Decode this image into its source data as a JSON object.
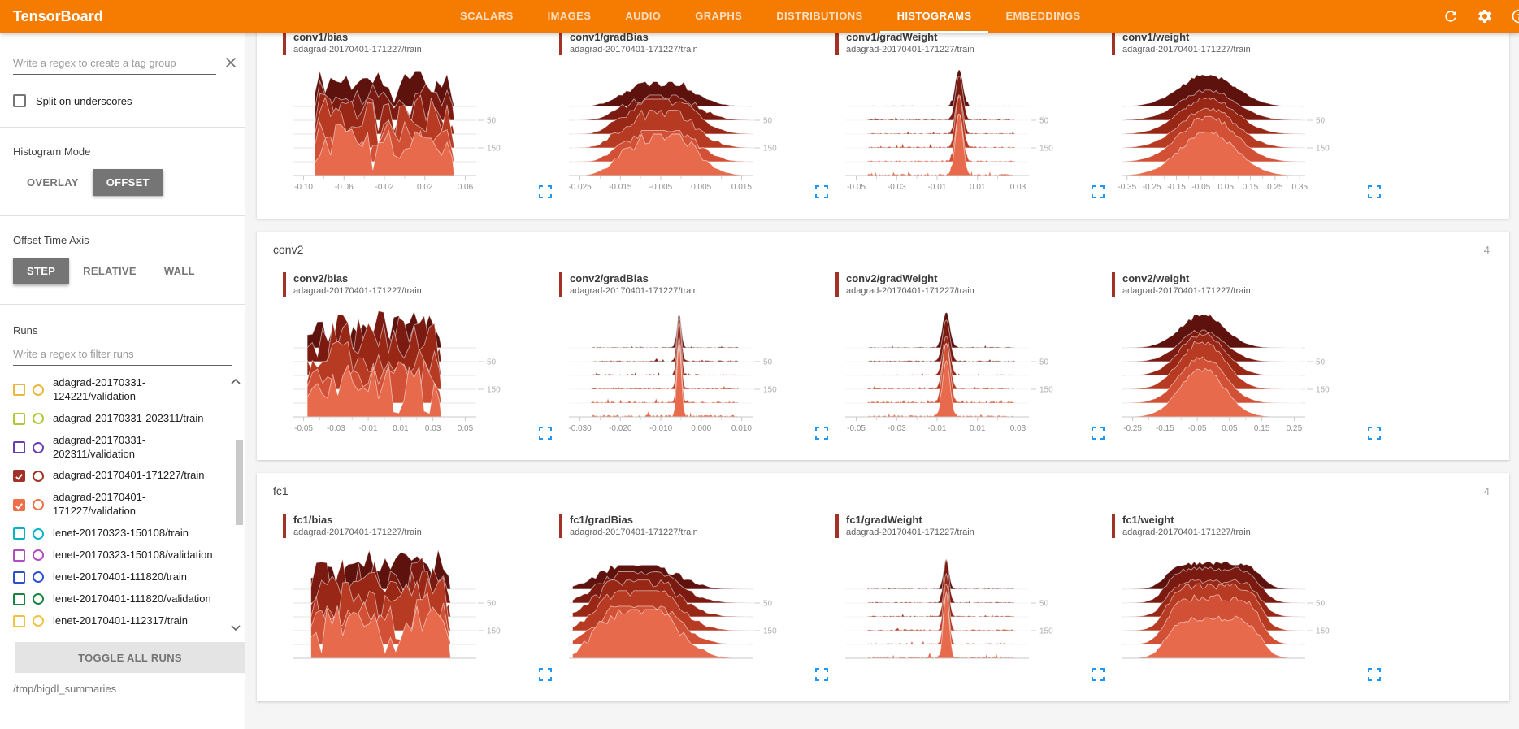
{
  "header": {
    "title": "TensorBoard",
    "tabs": [
      {
        "label": "SCALARS",
        "active": false
      },
      {
        "label": "IMAGES",
        "active": false
      },
      {
        "label": "AUDIO",
        "active": false
      },
      {
        "label": "GRAPHS",
        "active": false
      },
      {
        "label": "DISTRIBUTIONS",
        "active": false
      },
      {
        "label": "HISTOGRAMS",
        "active": true
      },
      {
        "label": "EMBEDDINGS",
        "active": false
      }
    ],
    "icons": [
      "refresh-icon",
      "settings-icon",
      "help-icon"
    ]
  },
  "sidebar": {
    "tag_filter": {
      "placeholder": "Write a regex to create a tag group",
      "value": "",
      "clear_icon": "close-icon"
    },
    "split_checkbox": {
      "label": "Split on underscores",
      "checked": false
    },
    "histogram_mode": {
      "label": "Histogram Mode",
      "options": [
        "OVERLAY",
        "OFFSET"
      ],
      "selected": "OFFSET"
    },
    "offset_time_axis": {
      "label": "Offset Time Axis",
      "options": [
        "STEP",
        "RELATIVE",
        "WALL"
      ],
      "selected": "STEP"
    },
    "runs": {
      "label": "Runs",
      "filter_placeholder": "Write a regex to filter runs",
      "items": [
        {
          "name": "adagrad-20170331-124221/validation",
          "color": "#ecb73d",
          "checked": false
        },
        {
          "name": "adagrad-20170331-202311/train",
          "color": "#afca33",
          "checked": false
        },
        {
          "name": "adagrad-20170331-202311/validation",
          "color": "#6a3db8",
          "checked": false
        },
        {
          "name": "adagrad-20170401-171227/train",
          "color": "#a33226",
          "checked": true
        },
        {
          "name": "adagrad-20170401-171227/validation",
          "color": "#ef7048",
          "checked": true
        },
        {
          "name": "lenet-20170323-150108/train",
          "color": "#00b5c4",
          "checked": false
        },
        {
          "name": "lenet-20170323-150108/validation",
          "color": "#b24cc3",
          "checked": false
        },
        {
          "name": "lenet-20170401-111820/train",
          "color": "#2d50d0",
          "checked": false
        },
        {
          "name": "lenet-20170401-111820/validation",
          "color": "#17853e",
          "checked": false
        },
        {
          "name": "lenet-20170401-112317/train",
          "color": "#eec440",
          "checked": false
        }
      ],
      "toggle_all_label": "TOGGLE ALL RUNS"
    },
    "log_dir": "/tmp/bigdl_summaries"
  },
  "main": {
    "accent_color": "#a33226",
    "expand_icon_color": "#2196f3",
    "ridge_colors": [
      "#5d120d",
      "#7a1a10",
      "#982716",
      "#b73a22",
      "#d25136",
      "#e66a4b"
    ],
    "groups": [
      {
        "name": "",
        "count": "",
        "charts": [
          {
            "tag": "conv1/bias",
            "run": "adagrad-20170401-171227/train",
            "x_ticks": [
              "-0.10",
              "-0.06",
              "-0.02",
              "0.02",
              "0.06"
            ],
            "y_ticks": [
              "50",
              "150"
            ],
            "shape": "jagged",
            "a": 0.12,
            "b": 0.87,
            "amp": 60,
            "seed": 11
          },
          {
            "tag": "conv1/gradBias",
            "run": "adagrad-20170401-171227/train",
            "x_ticks": [
              "-0.025",
              "-0.015",
              "-0.005",
              "0.005",
              "0.015"
            ],
            "y_ticks": [
              "50",
              "150"
            ],
            "shape": "skewbell",
            "c": 0.57,
            "s": 0.13,
            "amp": 44,
            "seed": 22
          },
          {
            "tag": "conv1/gradWeight",
            "run": "adagrad-20170401-171227/train",
            "x_ticks": [
              "-0.05",
              "-0.03",
              "-0.01",
              "0.01",
              "0.03"
            ],
            "y_ticks": [
              "50",
              "150"
            ],
            "shape": "spike",
            "c": 0.62,
            "s": 0.02,
            "amp": 72,
            "seed": 33
          },
          {
            "tag": "conv1/weight",
            "run": "adagrad-20170401-171227/train",
            "x_ticks": [
              "-0.35",
              "-0.25",
              "-0.15",
              "-0.05",
              "0.05",
              "0.15",
              "0.25",
              "0.35"
            ],
            "y_ticks": [
              "50",
              "150"
            ],
            "shape": "bell",
            "c": 0.47,
            "s": 0.15,
            "amp": 58,
            "seed": 44
          }
        ]
      },
      {
        "name": "conv2",
        "count": "4",
        "charts": [
          {
            "tag": "conv2/bias",
            "run": "adagrad-20170401-171227/train",
            "x_ticks": [
              "-0.05",
              "-0.03",
              "-0.01",
              "0.01",
              "0.03",
              "0.05"
            ],
            "y_ticks": [
              "50",
              "150"
            ],
            "shape": "jagged",
            "a": 0.08,
            "b": 0.8,
            "amp": 60,
            "seed": 55
          },
          {
            "tag": "conv2/gradBias",
            "run": "adagrad-20170401-171227/train",
            "x_ticks": [
              "-0.030",
              "-0.020",
              "-0.010",
              "0.000",
              "0.010"
            ],
            "y_ticks": [
              "50",
              "150"
            ],
            "shape": "spike",
            "c": 0.6,
            "s": 0.012,
            "amp": 76,
            "seed": 66
          },
          {
            "tag": "conv2/gradWeight",
            "run": "adagrad-20170401-171227/train",
            "x_ticks": [
              "-0.05",
              "-0.03",
              "-0.01",
              "0.01",
              "0.03"
            ],
            "y_ticks": [
              "50",
              "150"
            ],
            "shape": "spike",
            "c": 0.55,
            "s": 0.02,
            "amp": 72,
            "seed": 77
          },
          {
            "tag": "conv2/weight",
            "run": "adagrad-20170401-171227/train",
            "x_ticks": [
              "-0.25",
              "-0.15",
              "-0.05",
              "0.05",
              "0.15",
              "0.25"
            ],
            "y_ticks": [
              "50",
              "150"
            ],
            "shape": "bell",
            "c": 0.44,
            "s": 0.12,
            "amp": 60,
            "seed": 88
          }
        ]
      },
      {
        "name": "fc1",
        "count": "4",
        "charts": [
          {
            "tag": "fc1/bias",
            "run": "adagrad-20170401-171227/train",
            "x_ticks": [],
            "y_ticks": [
              "50",
              "150"
            ],
            "shape": "jagged",
            "a": 0.1,
            "b": 0.85,
            "amp": 62,
            "seed": 99
          },
          {
            "tag": "fc1/gradBias",
            "run": "adagrad-20170401-171227/train",
            "x_ticks": [],
            "y_ticks": [
              "50",
              "150"
            ],
            "shape": "skewbell",
            "c": 0.45,
            "s": 0.15,
            "amp": 50,
            "seed": 110
          },
          {
            "tag": "fc1/gradWeight",
            "run": "adagrad-20170401-171227/train",
            "x_ticks": [],
            "y_ticks": [
              "50",
              "150"
            ],
            "shape": "spike",
            "c": 0.55,
            "s": 0.015,
            "amp": 70,
            "seed": 121
          },
          {
            "tag": "fc1/weight",
            "run": "adagrad-20170401-171227/train",
            "x_ticks": [],
            "y_ticks": [
              "50",
              "150"
            ],
            "shape": "flatbell",
            "c": 0.5,
            "w": 0.52,
            "amp": 55,
            "seed": 132
          }
        ]
      }
    ]
  }
}
